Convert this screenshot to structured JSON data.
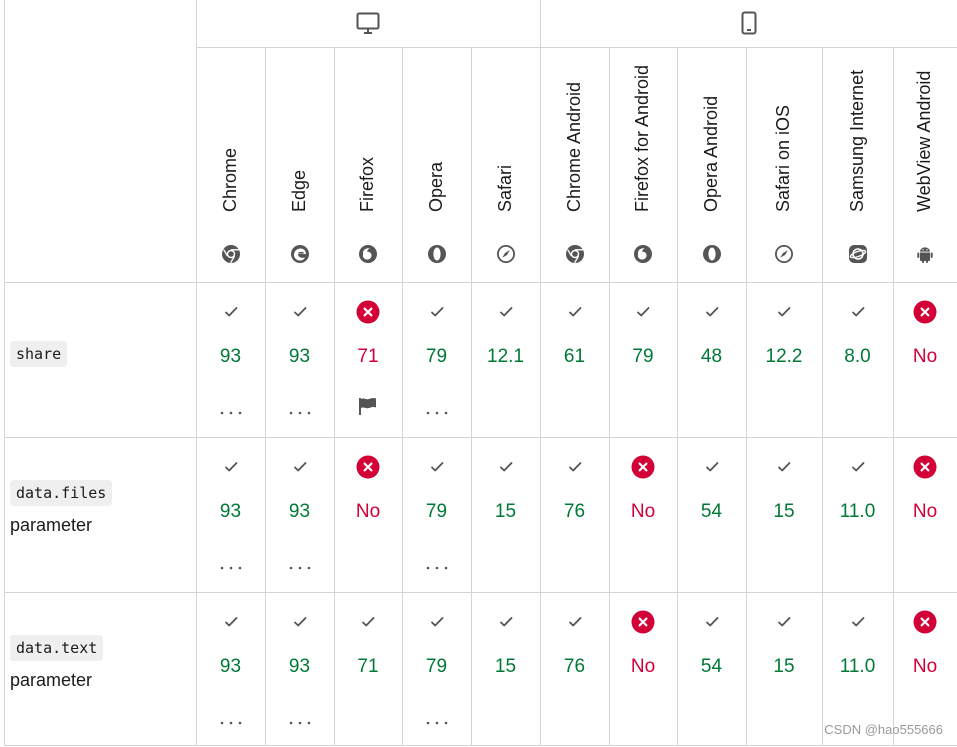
{
  "platforms": [
    {
      "name": "desktop",
      "icon": "desktop-icon"
    },
    {
      "name": "mobile",
      "icon": "mobile-icon"
    }
  ],
  "browsers": [
    {
      "id": "chrome",
      "label": "Chrome",
      "icon": "chrome-icon"
    },
    {
      "id": "edge",
      "label": "Edge",
      "icon": "edge-icon"
    },
    {
      "id": "firefox",
      "label": "Firefox",
      "icon": "firefox-icon"
    },
    {
      "id": "opera",
      "label": "Opera",
      "icon": "opera-icon"
    },
    {
      "id": "safari",
      "label": "Safari",
      "icon": "safari-icon"
    },
    {
      "id": "chrome-android",
      "label": "Chrome Android",
      "icon": "chrome-icon"
    },
    {
      "id": "firefox-android",
      "label": "Firefox for Android",
      "icon": "firefox-icon"
    },
    {
      "id": "opera-android",
      "label": "Opera Android",
      "icon": "opera-icon"
    },
    {
      "id": "safari-ios",
      "label": "Safari on iOS",
      "icon": "safari-icon"
    },
    {
      "id": "samsung-internet",
      "label": "Samsung Internet",
      "icon": "samsung-internet-icon"
    },
    {
      "id": "webview-android",
      "label": "WebView Android",
      "icon": "android-icon"
    }
  ],
  "features": [
    {
      "code": "share",
      "suffix": "",
      "support": [
        {
          "status": "yes",
          "version": "93",
          "more": true
        },
        {
          "status": "yes",
          "version": "93",
          "more": true
        },
        {
          "status": "no",
          "version": "71",
          "flag": true
        },
        {
          "status": "yes",
          "version": "79",
          "more": true
        },
        {
          "status": "yes",
          "version": "12.1"
        },
        {
          "status": "yes",
          "version": "61"
        },
        {
          "status": "yes",
          "version": "79"
        },
        {
          "status": "yes",
          "version": "48"
        },
        {
          "status": "yes",
          "version": "12.2"
        },
        {
          "status": "yes",
          "version": "8.0"
        },
        {
          "status": "no",
          "version": "No"
        }
      ]
    },
    {
      "code": "data.files",
      "suffix": "parameter",
      "support": [
        {
          "status": "yes",
          "version": "93",
          "more": true
        },
        {
          "status": "yes",
          "version": "93",
          "more": true
        },
        {
          "status": "no",
          "version": "No"
        },
        {
          "status": "yes",
          "version": "79",
          "more": true
        },
        {
          "status": "yes",
          "version": "15"
        },
        {
          "status": "yes",
          "version": "76"
        },
        {
          "status": "no",
          "version": "No"
        },
        {
          "status": "yes",
          "version": "54"
        },
        {
          "status": "yes",
          "version": "15"
        },
        {
          "status": "yes",
          "version": "11.0"
        },
        {
          "status": "no",
          "version": "No"
        }
      ]
    },
    {
      "code": "data.text",
      "suffix": "parameter",
      "support": [
        {
          "status": "yes",
          "version": "93",
          "more": true
        },
        {
          "status": "yes",
          "version": "93",
          "more": true
        },
        {
          "status": "yes",
          "version": "71"
        },
        {
          "status": "yes",
          "version": "79",
          "more": true
        },
        {
          "status": "yes",
          "version": "15"
        },
        {
          "status": "yes",
          "version": "76"
        },
        {
          "status": "no",
          "version": "No"
        },
        {
          "status": "yes",
          "version": "54"
        },
        {
          "status": "yes",
          "version": "15"
        },
        {
          "status": "yes",
          "version": "11.0"
        },
        {
          "status": "no",
          "version": "No"
        }
      ]
    }
  ],
  "colors": {
    "supported": "#007936",
    "unsupported": "#d30038",
    "border": "#d2d4d6"
  },
  "watermark": "CSDN @hao555666"
}
